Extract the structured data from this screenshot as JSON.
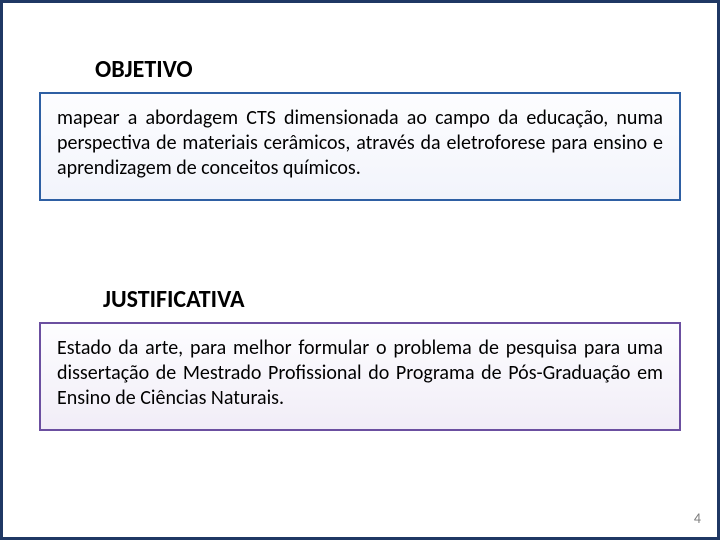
{
  "slide": {
    "frame_border_color": "#1f3864",
    "background_color": "#ffffff",
    "page_number": "4"
  },
  "sections": {
    "objetivo": {
      "heading": "OBJETIVO",
      "heading_fontsize": 24,
      "heading_fontweight": 700,
      "heading_color": "#000000",
      "body": "mapear a abordagem CTS dimensionada ao campo da educação, numa perspectiva de materiais cerâmicos, através da eletroforese para ensino e aprendizagem de conceitos químicos.",
      "body_fontsize": 20,
      "box_border_color": "#2e5fa3",
      "box_bg_top": "#fdfdff",
      "box_bg_bottom": "#f2f4fb"
    },
    "justificativa": {
      "heading": "JUSTIFICATIVA",
      "heading_fontsize": 24,
      "heading_fontweight": 700,
      "heading_color": "#000000",
      "body": "Estado da arte, para melhor formular o problema de pesquisa para uma dissertação de Mestrado Profissional do Programa de Pós-Graduação em Ensino de Ciências Naturais.",
      "body_fontsize": 20,
      "box_border_color": "#6b4fa0",
      "box_bg_top": "#fdfdff",
      "box_bg_bottom": "#f1edf7"
    }
  }
}
